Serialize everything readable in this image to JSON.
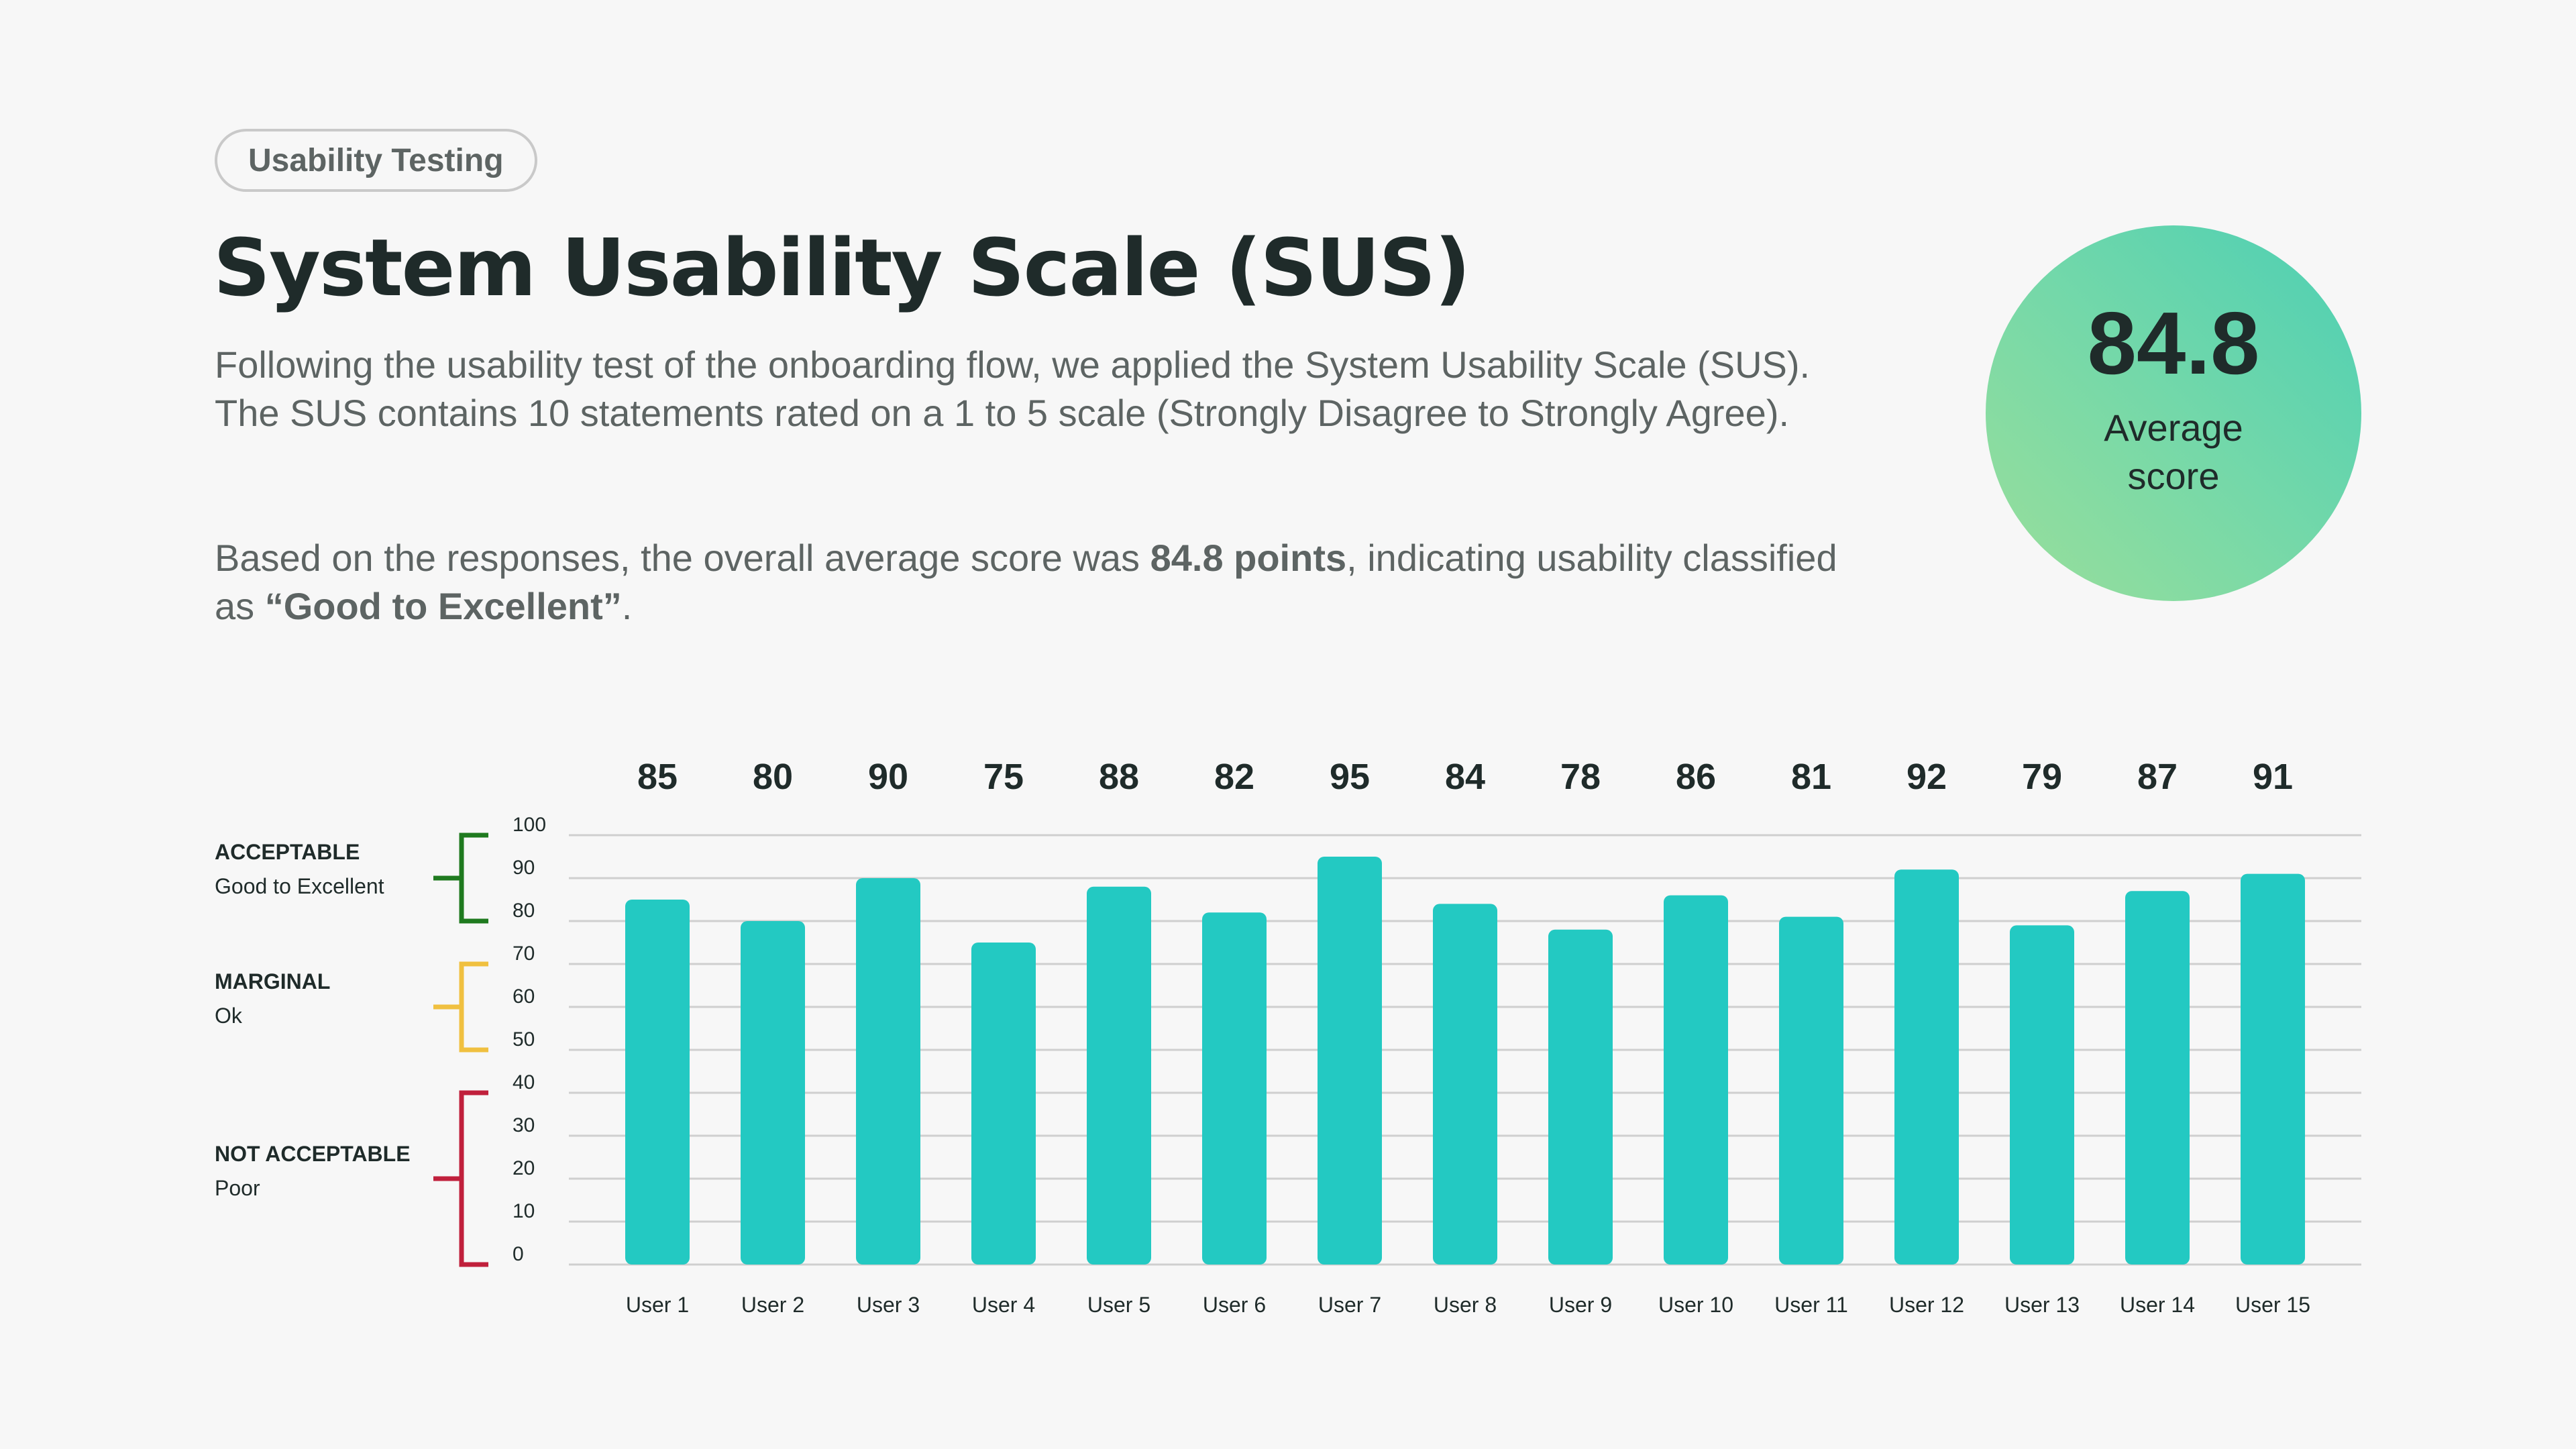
{
  "badge": "Usability Testing",
  "title": "System Usability Scale (SUS)",
  "description": {
    "p1": "Following the usability test of the onboarding flow, we applied the System Usability Scale (SUS). The SUS contains 10 statements rated on a 1 to 5 scale (Strongly Disagree to Strongly Agree).",
    "p2_before": "Based on the responses, the overall average score was ",
    "p2_score": "84.8 points",
    "p2_middle": ", indicating usability classified as ",
    "p2_class": "“Good to Excellent”",
    "p2_end": "."
  },
  "average": {
    "value": "84.8",
    "label": "Average score"
  },
  "categories": [
    {
      "name": "ACCEPTABLE",
      "sub": "Good to Excellent",
      "range": [
        80,
        100
      ],
      "color": "#1f7a1f"
    },
    {
      "name": "MARGINAL",
      "sub": "Ok",
      "range": [
        50,
        70
      ],
      "color": "#f0c040"
    },
    {
      "name": "NOT ACCEPTABLE",
      "sub": "Poor",
      "range": [
        0,
        40
      ],
      "color": "#c0203c"
    }
  ],
  "colors": {
    "bar": "#23c9c2",
    "grid": "#cfcfcf",
    "text": "#1f2b2a"
  },
  "chart_data": {
    "type": "bar",
    "categories": [
      "User 1",
      "User 2",
      "User 3",
      "User 4",
      "User 5",
      "User 6",
      "User 7",
      "User 8",
      "User 9",
      "User 10",
      "User 11",
      "User 12",
      "User 13",
      "User 14",
      "User 15"
    ],
    "values": [
      85,
      80,
      90,
      75,
      88,
      82,
      95,
      84,
      78,
      86,
      81,
      92,
      79,
      87,
      91
    ],
    "yticks": [
      0,
      10,
      20,
      30,
      40,
      50,
      60,
      70,
      80,
      90,
      100
    ],
    "ylim": [
      0,
      100
    ],
    "grid": true,
    "data_labels": true
  }
}
